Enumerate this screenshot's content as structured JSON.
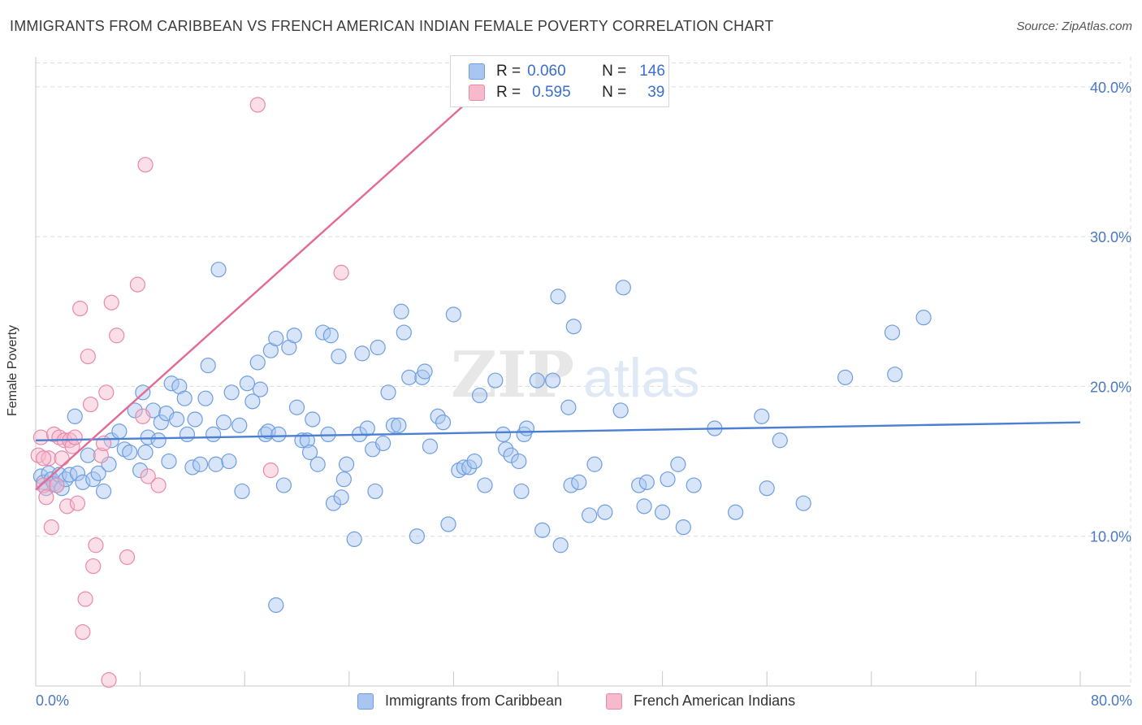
{
  "header": {
    "title": "IMMIGRANTS FROM CARIBBEAN VS FRENCH AMERICAN INDIAN FEMALE POVERTY CORRELATION CHART",
    "source": "Source: ZipAtlas.com"
  },
  "watermark": {
    "zip": "ZIP",
    "atlas": "atlas"
  },
  "legend": {
    "rows": [
      {
        "r_label": "R =",
        "r_value": "0.060",
        "n_label": "N =",
        "n_value": "146",
        "color": "#a9c6f0",
        "border": "#6e9ee0"
      },
      {
        "r_label": "R =",
        "r_value": "0.595",
        "n_label": "N =",
        "n_value": "39",
        "color": "#f7b9cc",
        "border": "#e889a8"
      }
    ]
  },
  "bottom_legend": {
    "series1": "Immigrants from Caribbean",
    "series2": "French American Indians"
  },
  "chart_data": {
    "type": "scatter",
    "title": "IMMIGRANTS FROM CARIBBEAN VS FRENCH AMERICAN INDIAN FEMALE POVERTY CORRELATION CHART",
    "xlabel": "",
    "ylabel": "Female Poverty",
    "xlim": [
      0,
      80
    ],
    "ylim": [
      0,
      42
    ],
    "x_tick_labels": [
      "0.0%",
      "80.0%"
    ],
    "y_ticks": [
      10,
      20,
      30,
      40
    ],
    "y_tick_labels": [
      "10.0%",
      "20.0%",
      "30.0%",
      "40.0%"
    ],
    "grid": true,
    "legend_position": "top-center",
    "colors": {
      "blue": "#4a7fd4",
      "blue_fill": "#a9c6f0",
      "pink": "#e36a95",
      "pink_fill": "#f7b9cc"
    },
    "series": [
      {
        "name": "Immigrants from Caribbean",
        "r": 0.06,
        "n": 146,
        "trend": {
          "x0": 0,
          "y0": 16.4,
          "x1": 80,
          "y1": 17.6
        },
        "points": [
          [
            0.4,
            14.0
          ],
          [
            0.6,
            13.6
          ],
          [
            0.8,
            13.2
          ],
          [
            1.0,
            14.2
          ],
          [
            1.2,
            13.8
          ],
          [
            1.4,
            13.5
          ],
          [
            1.6,
            13.4
          ],
          [
            1.8,
            14.1
          ],
          [
            2.0,
            13.2
          ],
          [
            2.3,
            13.8
          ],
          [
            2.6,
            14.1
          ],
          [
            3.0,
            18.0
          ],
          [
            3.2,
            14.2
          ],
          [
            3.6,
            13.6
          ],
          [
            4.0,
            15.4
          ],
          [
            4.4,
            13.8
          ],
          [
            4.8,
            14.2
          ],
          [
            5.2,
            13.0
          ],
          [
            5.6,
            14.8
          ],
          [
            5.8,
            16.4
          ],
          [
            6.4,
            17.0
          ],
          [
            6.8,
            15.8
          ],
          [
            7.2,
            15.6
          ],
          [
            7.6,
            18.4
          ],
          [
            8.0,
            14.4
          ],
          [
            8.2,
            19.6
          ],
          [
            8.4,
            15.6
          ],
          [
            8.6,
            16.6
          ],
          [
            9.0,
            18.4
          ],
          [
            9.4,
            16.4
          ],
          [
            9.6,
            17.6
          ],
          [
            10.0,
            18.2
          ],
          [
            10.2,
            15.0
          ],
          [
            10.4,
            20.2
          ],
          [
            10.8,
            17.8
          ],
          [
            11.0,
            20.0
          ],
          [
            11.4,
            19.2
          ],
          [
            11.6,
            16.8
          ],
          [
            12.0,
            14.6
          ],
          [
            12.2,
            17.8
          ],
          [
            12.6,
            14.8
          ],
          [
            13.0,
            19.2
          ],
          [
            13.2,
            21.4
          ],
          [
            13.6,
            16.8
          ],
          [
            13.8,
            14.8
          ],
          [
            14.0,
            27.8
          ],
          [
            14.4,
            17.6
          ],
          [
            14.8,
            15.0
          ],
          [
            15.0,
            19.6
          ],
          [
            15.6,
            17.4
          ],
          [
            15.8,
            13.0
          ],
          [
            16.2,
            20.2
          ],
          [
            16.6,
            19.0
          ],
          [
            17.0,
            21.6
          ],
          [
            17.2,
            19.8
          ],
          [
            17.6,
            16.8
          ],
          [
            17.8,
            17.0
          ],
          [
            18.0,
            22.4
          ],
          [
            18.4,
            23.2
          ],
          [
            18.6,
            16.8
          ],
          [
            19.0,
            13.4
          ],
          [
            19.4,
            22.6
          ],
          [
            19.8,
            23.4
          ],
          [
            20.0,
            18.6
          ],
          [
            20.4,
            16.4
          ],
          [
            20.8,
            16.4
          ],
          [
            21.0,
            15.6
          ],
          [
            21.2,
            17.8
          ],
          [
            21.6,
            14.8
          ],
          [
            22.0,
            23.6
          ],
          [
            22.4,
            16.8
          ],
          [
            22.6,
            23.4
          ],
          [
            22.8,
            12.2
          ],
          [
            23.2,
            22.0
          ],
          [
            23.4,
            12.6
          ],
          [
            23.6,
            13.8
          ],
          [
            23.8,
            14.8
          ],
          [
            24.4,
            9.8
          ],
          [
            24.8,
            16.8
          ],
          [
            25.0,
            22.2
          ],
          [
            25.4,
            17.2
          ],
          [
            25.8,
            15.8
          ],
          [
            26.0,
            13.0
          ],
          [
            26.2,
            22.6
          ],
          [
            26.6,
            16.2
          ],
          [
            27.0,
            19.6
          ],
          [
            27.4,
            17.4
          ],
          [
            27.8,
            17.4
          ],
          [
            28.0,
            25.0
          ],
          [
            28.2,
            23.6
          ],
          [
            28.6,
            20.6
          ],
          [
            29.2,
            10.0
          ],
          [
            29.6,
            20.6
          ],
          [
            29.8,
            21.0
          ],
          [
            30.2,
            16.0
          ],
          [
            30.8,
            18.0
          ],
          [
            31.2,
            17.6
          ],
          [
            31.6,
            10.8
          ],
          [
            32.0,
            24.8
          ],
          [
            32.4,
            14.4
          ],
          [
            32.8,
            14.6
          ],
          [
            33.2,
            14.6
          ],
          [
            33.6,
            15.0
          ],
          [
            34.0,
            19.4
          ],
          [
            34.4,
            13.4
          ],
          [
            35.2,
            20.4
          ],
          [
            35.8,
            16.8
          ],
          [
            36.0,
            15.8
          ],
          [
            36.4,
            15.4
          ],
          [
            37.0,
            15.0
          ],
          [
            37.2,
            13.0
          ],
          [
            37.4,
            16.8
          ],
          [
            37.6,
            17.2
          ],
          [
            38.4,
            20.4
          ],
          [
            38.8,
            10.4
          ],
          [
            39.6,
            20.4
          ],
          [
            40.0,
            26.0
          ],
          [
            40.2,
            9.4
          ],
          [
            40.8,
            18.6
          ],
          [
            41.0,
            13.4
          ],
          [
            41.2,
            24.0
          ],
          [
            41.6,
            13.6
          ],
          [
            42.4,
            11.4
          ],
          [
            42.8,
            14.8
          ],
          [
            43.6,
            11.6
          ],
          [
            44.8,
            18.4
          ],
          [
            45.0,
            26.6
          ],
          [
            46.2,
            13.4
          ],
          [
            46.6,
            12.0
          ],
          [
            46.8,
            13.6
          ],
          [
            48.0,
            11.6
          ],
          [
            48.4,
            13.8
          ],
          [
            49.2,
            14.8
          ],
          [
            49.6,
            10.6
          ],
          [
            50.4,
            13.4
          ],
          [
            52.0,
            17.2
          ],
          [
            53.6,
            11.6
          ],
          [
            55.6,
            18.0
          ],
          [
            56.0,
            13.2
          ],
          [
            57.0,
            16.4
          ],
          [
            58.8,
            12.2
          ],
          [
            62.0,
            20.6
          ],
          [
            65.6,
            23.6
          ],
          [
            65.8,
            20.8
          ],
          [
            68.0,
            24.6
          ],
          [
            18.4,
            5.4
          ]
        ]
      },
      {
        "name": "French American Indians",
        "r": 0.595,
        "n": 39,
        "trend": {
          "x0": 0,
          "y0": 13.1,
          "x1": 35,
          "y1": 40.5
        },
        "points": [
          [
            0.2,
            15.4
          ],
          [
            0.4,
            16.6
          ],
          [
            0.6,
            13.4
          ],
          [
            0.8,
            12.6
          ],
          [
            1.0,
            15.2
          ],
          [
            1.2,
            10.6
          ],
          [
            1.4,
            16.8
          ],
          [
            1.6,
            13.4
          ],
          [
            1.8,
            16.6
          ],
          [
            2.0,
            15.2
          ],
          [
            2.2,
            16.4
          ],
          [
            2.4,
            12.0
          ],
          [
            2.6,
            16.4
          ],
          [
            2.8,
            16.0
          ],
          [
            3.0,
            16.6
          ],
          [
            3.2,
            12.2
          ],
          [
            3.4,
            25.2
          ],
          [
            3.6,
            3.6
          ],
          [
            3.8,
            5.8
          ],
          [
            4.0,
            22.0
          ],
          [
            4.2,
            18.8
          ],
          [
            4.4,
            8.0
          ],
          [
            4.6,
            9.4
          ],
          [
            5.0,
            15.4
          ],
          [
            5.2,
            16.2
          ],
          [
            5.4,
            19.6
          ],
          [
            5.6,
            0.4
          ],
          [
            5.8,
            25.6
          ],
          [
            6.2,
            23.4
          ],
          [
            7.0,
            8.6
          ],
          [
            7.8,
            26.8
          ],
          [
            8.2,
            18.0
          ],
          [
            8.4,
            34.8
          ],
          [
            8.6,
            14.0
          ],
          [
            9.4,
            13.4
          ],
          [
            17.0,
            38.8
          ],
          [
            18.0,
            14.4
          ],
          [
            23.4,
            27.6
          ],
          [
            0.6,
            15.2
          ]
        ]
      }
    ]
  }
}
